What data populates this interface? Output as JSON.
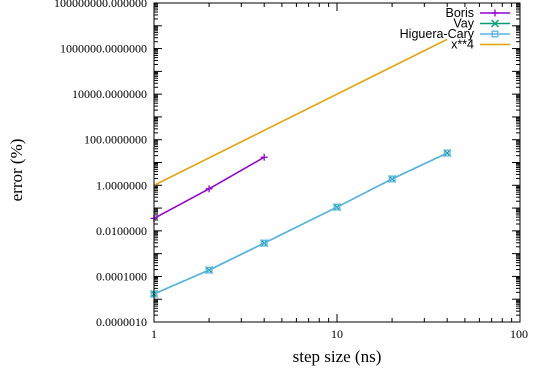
{
  "chart_data": {
    "type": "line",
    "title": "",
    "xlabel": "step size (ns)",
    "ylabel": "error (%)",
    "x_scale": "log",
    "y_scale": "log",
    "xlim": [
      1,
      100
    ],
    "ylim": [
      1e-06,
      100000000.0
    ],
    "x_ticks": [
      1,
      10,
      100
    ],
    "x_tick_labels": [
      "1",
      "10",
      "100"
    ],
    "y_ticks": [
      1e-06,
      0.0001,
      0.01,
      1,
      100,
      10000,
      1000000,
      100000000
    ],
    "y_tick_labels": [
      "0.0000010",
      "0.0001000",
      "0.0100000",
      "1.0000000",
      "100.0000000",
      "10000.0000000",
      "1000000.0000000",
      "100000000.000000"
    ],
    "grid": false,
    "legend_position": "top-right",
    "series": [
      {
        "name": "Boris",
        "color": "#9400d3",
        "marker": "plus",
        "x": [
          1,
          2,
          4
        ],
        "y": [
          0.035,
          0.7,
          17
        ]
      },
      {
        "name": "Vay",
        "color": "#009e73",
        "marker": "x",
        "x": [
          1,
          2,
          4,
          10,
          20,
          40
        ],
        "y": [
          1.7e-05,
          0.00019,
          0.0029,
          0.11,
          1.9,
          26
        ]
      },
      {
        "name": "Higuera-Cary",
        "color": "#56b4e9",
        "marker": "box",
        "x": [
          1,
          2,
          4,
          10,
          20,
          40
        ],
        "y": [
          1.7e-05,
          0.00019,
          0.0029,
          0.11,
          1.9,
          26
        ]
      },
      {
        "name": "x**4",
        "color": "#e69f00",
        "marker": "none",
        "x": [
          1,
          40
        ],
        "y": [
          1,
          2560000
        ]
      }
    ]
  }
}
